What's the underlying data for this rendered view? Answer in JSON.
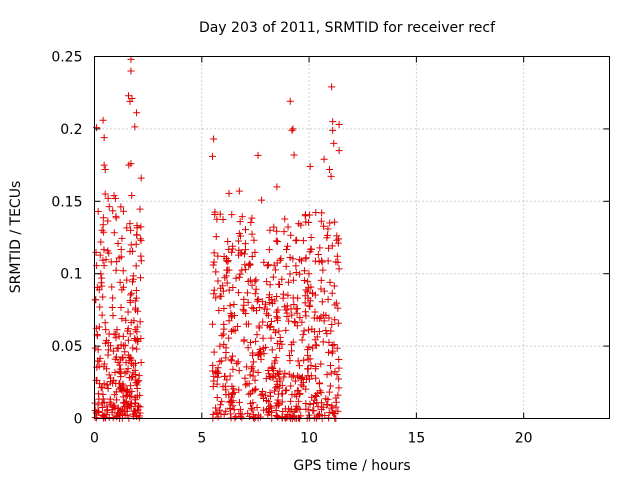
{
  "chart_data": {
    "type": "scatter",
    "title": "Day 203 of 2011, SRMTID for receiver recf",
    "xlabel": "GPS time / hours",
    "ylabel": "SRMTID / TECUs",
    "xlim": [
      0,
      24
    ],
    "ylim": [
      0,
      0.25
    ],
    "x_ticks": [
      0,
      5,
      10,
      15,
      20
    ],
    "x_tick_labels": [
      "0",
      "5",
      "10",
      "15",
      "20"
    ],
    "y_ticks": [
      0,
      0.05,
      0.1,
      0.15,
      0.2,
      0.25
    ],
    "y_tick_labels": [
      "0",
      "0.05",
      "0.1",
      "0.15",
      "0.2",
      "0.25"
    ],
    "grid": true,
    "marker": "+",
    "color": "#e00000",
    "clusters": [
      {
        "name": "early",
        "x_range": [
          0.0,
          2.2
        ],
        "approx_points": 320,
        "y_peak": 0.25
      },
      {
        "name": "late",
        "x_range": [
          5.5,
          11.4
        ],
        "approx_points": 650,
        "y_peak": 0.23
      }
    ],
    "notable_points": [
      {
        "x": 1.7,
        "y": 0.248
      },
      {
        "x": 1.7,
        "y": 0.24
      },
      {
        "x": 1.75,
        "y": 0.221
      },
      {
        "x": 1.65,
        "y": 0.219
      },
      {
        "x": 0.4,
        "y": 0.206
      },
      {
        "x": 0.45,
        "y": 0.194
      },
      {
        "x": 1.7,
        "y": 0.176
      },
      {
        "x": 1.6,
        "y": 0.175
      },
      {
        "x": 0.45,
        "y": 0.175
      },
      {
        "x": 0.5,
        "y": 0.172
      },
      {
        "x": 0.5,
        "y": 0.155
      },
      {
        "x": 0.35,
        "y": 0.13
      },
      {
        "x": 5.55,
        "y": 0.193
      },
      {
        "x": 5.5,
        "y": 0.181
      },
      {
        "x": 6.75,
        "y": 0.157
      },
      {
        "x": 8.5,
        "y": 0.16
      },
      {
        "x": 9.25,
        "y": 0.2
      },
      {
        "x": 9.2,
        "y": 0.199
      },
      {
        "x": 9.3,
        "y": 0.182
      },
      {
        "x": 10.05,
        "y": 0.174
      },
      {
        "x": 11.05,
        "y": 0.229
      },
      {
        "x": 11.4,
        "y": 0.203
      },
      {
        "x": 11.1,
        "y": 0.205
      },
      {
        "x": 11.1,
        "y": 0.199
      },
      {
        "x": 11.15,
        "y": 0.19
      },
      {
        "x": 11.4,
        "y": 0.185
      },
      {
        "x": 10.7,
        "y": 0.179
      },
      {
        "x": 10.95,
        "y": 0.172
      }
    ]
  }
}
